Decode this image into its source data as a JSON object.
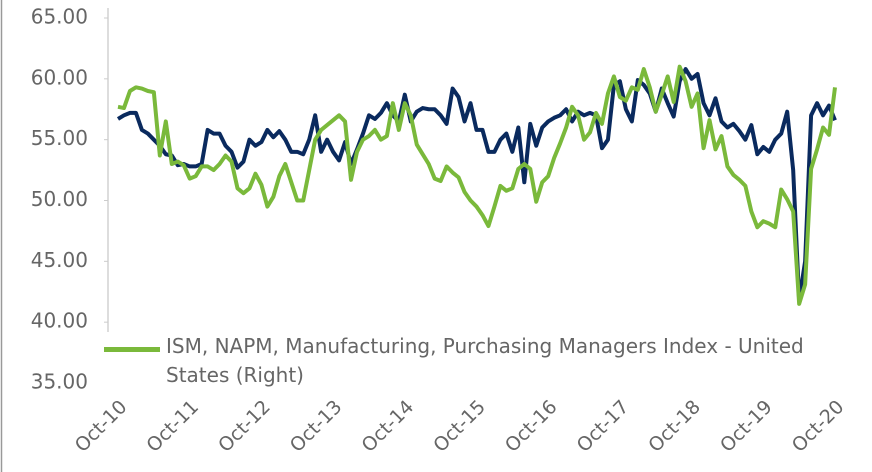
{
  "chart_data": {
    "type": "line",
    "categories": [
      "Oct-10",
      null,
      null,
      null,
      null,
      null,
      null,
      null,
      null,
      null,
      null,
      null,
      "Oct-11",
      null,
      null,
      null,
      null,
      null,
      null,
      null,
      null,
      null,
      null,
      null,
      "Oct-12",
      null,
      null,
      null,
      null,
      null,
      null,
      null,
      null,
      null,
      null,
      null,
      "Oct-13",
      null,
      null,
      null,
      null,
      null,
      null,
      null,
      null,
      null,
      null,
      null,
      "Oct-14",
      null,
      null,
      null,
      null,
      null,
      null,
      null,
      null,
      null,
      null,
      null,
      "Oct-15",
      null,
      null,
      null,
      null,
      null,
      null,
      null,
      null,
      null,
      null,
      null,
      "Oct-16",
      null,
      null,
      null,
      null,
      null,
      null,
      null,
      null,
      null,
      null,
      null,
      "Oct-17",
      null,
      null,
      null,
      null,
      null,
      null,
      null,
      null,
      null,
      null,
      null,
      "Oct-18",
      null,
      null,
      null,
      null,
      null,
      null,
      null,
      null,
      null,
      null,
      null,
      "Oct-19",
      null,
      null,
      null,
      null,
      null,
      null,
      null,
      null,
      null,
      null,
      null,
      "Oct-20"
    ],
    "series": [
      {
        "name": "ISM, NAPM, Manufacturing, Purchasing Managers Index - United States (Right)",
        "color": "#7ab93b",
        "values": [
          57.7,
          57.6,
          59.0,
          59.3,
          59.2,
          59.0,
          58.9,
          53.7,
          56.5,
          53.0,
          53.2,
          52.9,
          51.8,
          52.0,
          52.8,
          52.8,
          52.5,
          53.0,
          53.7,
          53.2,
          51.0,
          50.6,
          51.0,
          52.2,
          51.3,
          49.5,
          50.3,
          52.0,
          53.0,
          51.5,
          50.0,
          50.0,
          52.5,
          55.0,
          55.8,
          56.2,
          56.6,
          57.0,
          56.5,
          51.7,
          54.0,
          55.0,
          55.3,
          55.8,
          55.0,
          55.3,
          58.0,
          55.8,
          58.0,
          57.0,
          54.6,
          53.8,
          53.0,
          51.8,
          51.6,
          52.8,
          52.3,
          51.9,
          50.7,
          50.0,
          49.5,
          48.8,
          47.9,
          49.5,
          51.2,
          50.8,
          51.0,
          52.6,
          53.0,
          52.6,
          49.9,
          51.5,
          52.0,
          53.5,
          54.7,
          56.0,
          57.7,
          57.0,
          55.0,
          55.6,
          57.2,
          56.3,
          58.8,
          60.2,
          58.5,
          58.2,
          59.3,
          59.1,
          60.8,
          59.3,
          57.3,
          58.7,
          60.2,
          58.1,
          61.0,
          59.8,
          57.7,
          58.8,
          54.3,
          56.6,
          54.2,
          55.3,
          52.8,
          52.1,
          51.7,
          51.2,
          49.1,
          47.8,
          48.3,
          48.1,
          47.8,
          50.9,
          50.1,
          49.1,
          41.5,
          43.1,
          52.6,
          54.2,
          56.0,
          55.4,
          59.3
        ]
      },
      {
        "color": "#0a2a5e",
        "values": [
          56.7,
          57.0,
          57.2,
          57.2,
          55.8,
          55.5,
          55.0,
          54.5,
          53.8,
          53.7,
          52.9,
          53.0,
          52.8,
          52.8,
          53.0,
          55.8,
          55.5,
          55.5,
          54.5,
          54.0,
          52.7,
          53.2,
          55.0,
          54.5,
          54.8,
          55.8,
          55.2,
          55.7,
          55.0,
          54.0,
          54.0,
          53.8,
          55.0,
          57.0,
          54.0,
          55.0,
          54.0,
          53.3,
          54.8,
          53.0,
          54.2,
          55.5,
          57.0,
          56.7,
          57.2,
          58.0,
          57.0,
          56.5,
          58.7,
          56.5,
          57.3,
          57.6,
          57.5,
          57.5,
          57.0,
          56.3,
          59.2,
          58.5,
          56.5,
          58.0,
          55.8,
          55.8,
          54.0,
          54.0,
          55.0,
          55.5,
          54.0,
          56.0,
          51.5,
          56.3,
          54.5,
          56.0,
          56.5,
          56.8,
          57.0,
          57.5,
          56.5,
          57.3,
          57.0,
          57.2,
          57.0,
          54.3,
          55.0,
          59.5,
          59.8,
          57.5,
          56.5,
          59.9,
          59.5,
          58.8,
          57.3,
          59.2,
          58.0,
          56.9,
          59.8,
          60.8,
          60.0,
          60.4,
          58.0,
          57.0,
          58.4,
          56.5,
          56.0,
          56.3,
          55.7,
          55.0,
          56.2,
          53.8,
          54.4,
          54.0,
          55.0,
          55.5,
          57.3,
          52.5,
          41.8,
          45.0,
          57.0,
          58.0,
          57.0,
          57.8,
          56.6
        ]
      }
    ],
    "ylim": [
      35,
      65
    ],
    "yticks": [
      {
        "value": 35,
        "label": "35.00"
      },
      {
        "value": 40,
        "label": "40.00"
      },
      {
        "value": 45,
        "label": "45.00"
      },
      {
        "value": 50,
        "label": "50.00"
      },
      {
        "value": 55,
        "label": "55.00"
      },
      {
        "value": 60,
        "label": "60.00"
      },
      {
        "value": 65,
        "label": "65.00"
      }
    ],
    "grid": false,
    "legend": "bottom"
  }
}
